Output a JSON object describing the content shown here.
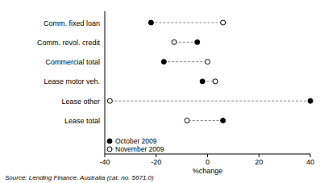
{
  "chart_data": {
    "type": "dot",
    "orientation": "horizontal",
    "categories": [
      "Comm. fixed loan",
      "Comm. revol. credit",
      "Commercial total",
      "Lease motor veh.",
      "Lease other",
      "Lease total"
    ],
    "series": [
      {
        "name": "October 2009",
        "color": "#000000",
        "marker": "filled",
        "values": [
          -22,
          -4,
          -17,
          -2,
          40,
          6
        ]
      },
      {
        "name": "November 2009",
        "color": "#000000",
        "marker": "open",
        "values": [
          6,
          -13,
          0,
          3,
          -38,
          -8
        ]
      }
    ],
    "xlim": [
      -40,
      40
    ],
    "xticks": [
      -40,
      -20,
      0,
      20,
      40
    ],
    "x_label": "%change",
    "legend": "lower left",
    "annotations": [
      "Source: Lending Finance, Australia (cat. no. 5671.0)"
    ]
  }
}
